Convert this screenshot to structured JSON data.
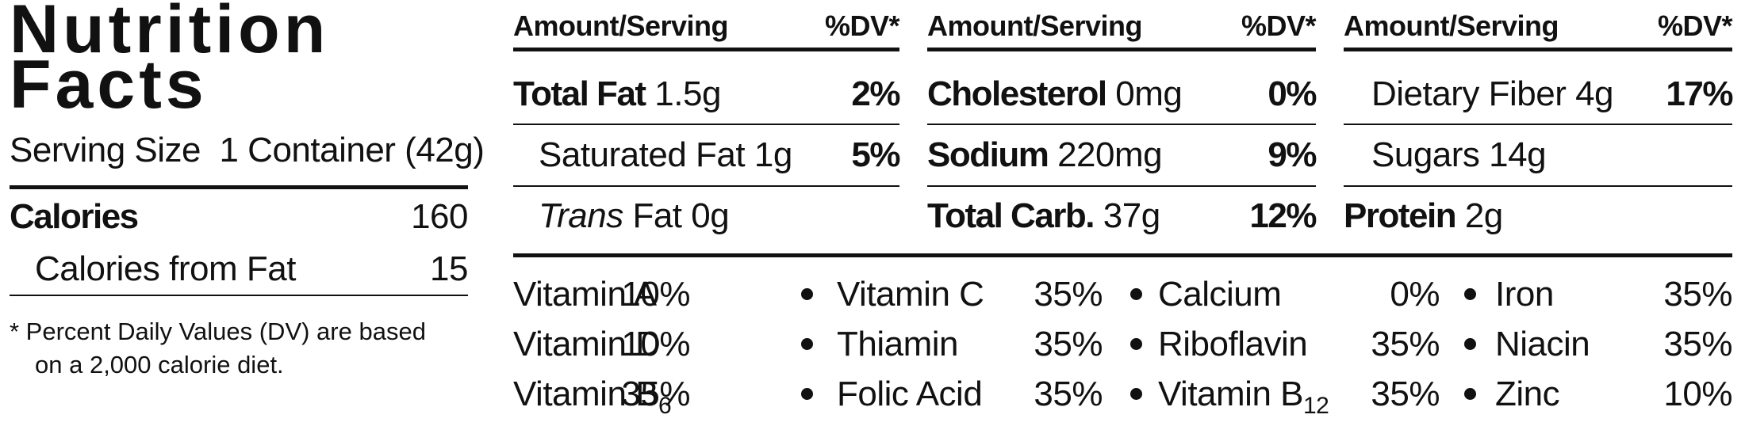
{
  "title_lines": [
    "Nutrition",
    "Facts"
  ],
  "serving_size": {
    "label": "Serving Size",
    "value": "1 Container (42g)"
  },
  "calories": {
    "label": "Calories",
    "value": "160"
  },
  "calories_from_fat": {
    "label": "Calories from Fat",
    "value": "15"
  },
  "footnote_lines": [
    "* Percent Daily Values (DV) are based",
    "on a 2,000 calorie diet."
  ],
  "columns": [
    {
      "header": {
        "amount": "Amount/Serving",
        "dv": "%DV*"
      },
      "rows": [
        {
          "name": "Total Fat",
          "amount": "1.5g",
          "dv": "2%"
        },
        {
          "name": "Saturated Fat",
          "amount": "1g",
          "dv": "5%"
        },
        {
          "name_italic": "Trans",
          "name": "Fat",
          "amount": "0g"
        }
      ]
    },
    {
      "header": {
        "amount": "Amount/Serving",
        "dv": "%DV*"
      },
      "rows": [
        {
          "name": "Cholesterol",
          "amount": "0mg",
          "dv": "0%"
        },
        {
          "name": "Sodium",
          "amount": "220mg",
          "dv": "9%"
        },
        {
          "name": "Total Carb.",
          "amount": "37g",
          "dv": "12%"
        }
      ]
    },
    {
      "header": {
        "amount": "Amount/Serving",
        "dv": "%DV*"
      },
      "rows": [
        {
          "name": "Dietary Fiber",
          "amount": "4g",
          "dv": "17%"
        },
        {
          "name": "Sugars",
          "amount": "14g"
        },
        {
          "name": "Protein",
          "amount": "2g"
        }
      ]
    }
  ],
  "vitamins": [
    [
      {
        "name": "Vitamin A",
        "dv": "10%"
      },
      {
        "name": "Vitamin C",
        "dv": "35%"
      },
      {
        "name": "Calcium",
        "dv": "0%"
      },
      {
        "name": "Iron",
        "dv": "35%"
      }
    ],
    [
      {
        "name": "Vitamin D",
        "dv": "10%"
      },
      {
        "name": "Thiamin",
        "dv": "35%"
      },
      {
        "name": "Riboflavin",
        "dv": "35%"
      },
      {
        "name": "Niacin",
        "dv": "35%"
      }
    ],
    [
      {
        "name": "Vitamin B",
        "subscript": "6",
        "dv": "35%"
      },
      {
        "name": "Folic Acid",
        "dv": "35%"
      },
      {
        "name": "Vitamin B",
        "subscript": "12",
        "dv": "35%"
      },
      {
        "name": "Zinc",
        "dv": "10%"
      }
    ]
  ]
}
